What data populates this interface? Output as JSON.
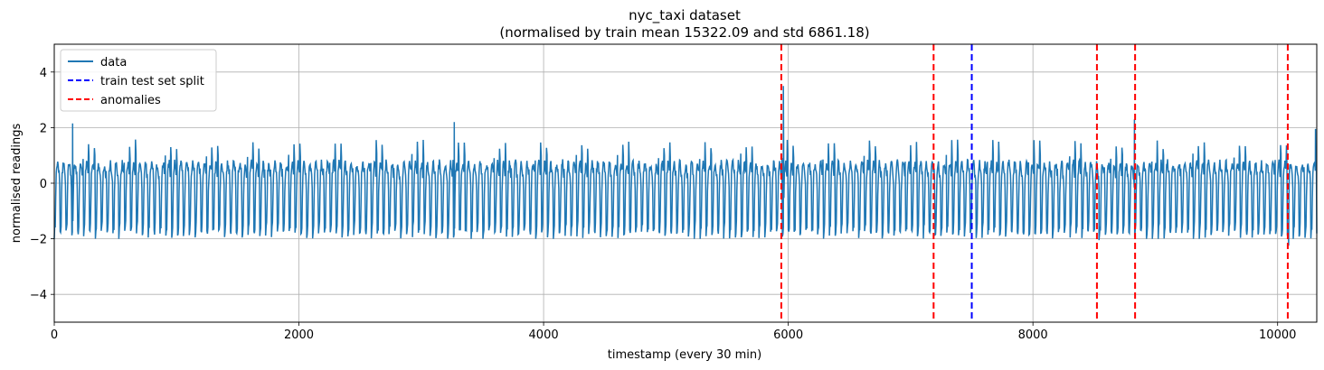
{
  "chart_data": {
    "type": "line",
    "title_line1": "nyc_taxi dataset",
    "title_line2": "(normalised by train mean 15322.09 and std 6861.18)",
    "xlabel": "timestamp (every 30 min)",
    "ylabel": "normalised readings",
    "xlim": [
      0,
      10320
    ],
    "ylim": [
      -5,
      5
    ],
    "xticks": [
      0,
      2000,
      4000,
      6000,
      8000,
      10000
    ],
    "yticks": [
      -4,
      -2,
      0,
      2,
      4
    ],
    "xtick_labels": [
      "0",
      "2000",
      "4000",
      "6000",
      "8000",
      "10000"
    ],
    "ytick_labels": [
      "−4",
      "−2",
      "0",
      "2",
      "4"
    ],
    "grid": true,
    "legend_position": "upper-left",
    "series": [
      {
        "name": "data",
        "color": "#1f77b4",
        "period": 336,
        "length": 10320,
        "daily_low": -1.85,
        "weekly_peak": 1.6,
        "spikes": [
          {
            "x": 150,
            "y": 2.15
          },
          {
            "x": 3270,
            "y": 2.2
          },
          {
            "x": 5960,
            "y": 3.5
          },
          {
            "x": 8830,
            "y": 2.3
          },
          {
            "x": 10310,
            "y": 1.95
          }
        ],
        "dips": [
          {
            "x": 10090,
            "y": -2.25
          },
          {
            "x": 8540,
            "y": -2.05
          }
        ]
      }
    ],
    "vlines": [
      {
        "name": "train test set split",
        "color": "#0000ff",
        "x": [
          7500
        ]
      },
      {
        "name": "anomalies",
        "color": "#ff0000",
        "x": [
          5943,
          7188,
          8523,
          8835,
          10083
        ]
      }
    ],
    "legend": [
      {
        "label": "data",
        "color": "#1f77b4",
        "style": "solid"
      },
      {
        "label": "train test set split",
        "color": "#0000ff",
        "style": "dashed"
      },
      {
        "label": "anomalies",
        "color": "#ff0000",
        "style": "dashed"
      }
    ]
  }
}
